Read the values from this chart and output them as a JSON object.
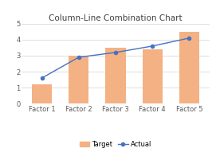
{
  "title": "Column-Line Combination Chart",
  "categories": [
    "Factor 1",
    "Factor 2",
    "Factor 3",
    "Factor 4",
    "Factor 5"
  ],
  "target_values": [
    1.2,
    3.0,
    3.5,
    3.4,
    4.5
  ],
  "actual_values": [
    1.6,
    2.9,
    3.2,
    3.6,
    4.1
  ],
  "bar_color": "#F4B183",
  "line_color": "#4472C4",
  "background_color": "#FFFFFF",
  "title_fontsize": 7.5,
  "tick_fontsize": 6.0,
  "legend_fontsize": 6.0,
  "ylim": [
    0,
    5
  ],
  "yticks": [
    0,
    1,
    2,
    3,
    4,
    5
  ],
  "grid_color": "#D9D9D9",
  "bar_width": 0.55
}
